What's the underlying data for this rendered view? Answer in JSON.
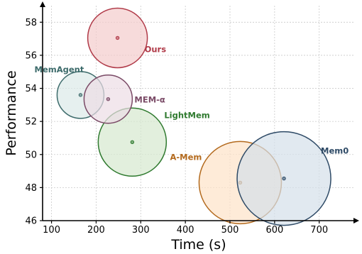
{
  "chart_data": {
    "type": "scatter",
    "xlabel": "Time (s)",
    "ylabel": "Performance",
    "xlim": [
      80,
      780
    ],
    "ylim": [
      46,
      59
    ],
    "xticks": [
      100,
      200,
      300,
      400,
      500,
      600,
      700
    ],
    "yticks": [
      46,
      48,
      50,
      52,
      54,
      56,
      58
    ],
    "grid": true,
    "points": [
      {
        "label": "Ours",
        "x": 248,
        "y": 57.05,
        "color": "#b03a48",
        "fill": "#f4cccc"
      },
      {
        "label": "MemAgent",
        "x": 165,
        "y": 53.6,
        "color": "#3d6b6b",
        "fill": "#dce9e8"
      },
      {
        "label": "MEM-α",
        "x": 227,
        "y": 53.35,
        "color": "#7a4a66",
        "fill": "#ecdde6"
      },
      {
        "label": "LightMem",
        "x": 281,
        "y": 50.75,
        "color": "#2f7a2f",
        "fill": "#d6e8cf"
      },
      {
        "label": "A-Mem",
        "x": 523,
        "y": 48.3,
        "color": "#b36a1e",
        "fill": "#fde2c8"
      },
      {
        "label": "Mem0",
        "x": 621,
        "y": 48.55,
        "color": "#2e4a66",
        "fill": "#d4dfe9"
      }
    ]
  }
}
